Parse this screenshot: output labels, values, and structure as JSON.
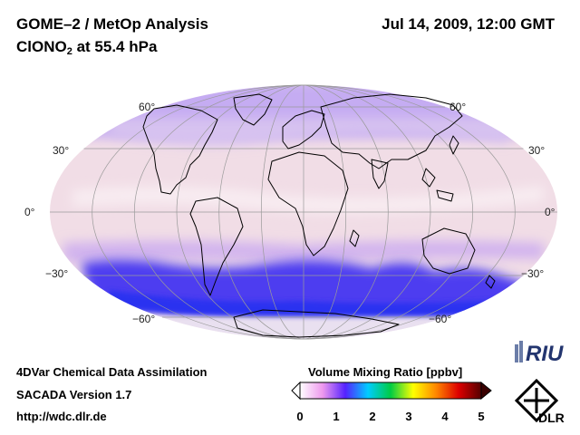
{
  "title_line1": "GOME–2 / MetOp Analysis",
  "title_line2_prefix": "ClONO",
  "title_line2_sub": "2",
  "title_line2_suffix": " at 55.4 hPa",
  "datetime": "Jul 14, 2009, 12:00 GMT",
  "projection": "Mollweide",
  "latitude_labels": {
    "n60": "60°",
    "n30": "30°",
    "eq": "0°",
    "s30": "−30°",
    "s60": "−60°"
  },
  "footer": {
    "line1": "4DVar Chemical Data Assimilation",
    "line2": "SACADA Version 1.7",
    "line3": "http://wdc.dlr.de"
  },
  "colorbar": {
    "title": "Volume Mixing Ratio [ppbv]",
    "min": 0,
    "max": 5,
    "ticks": [
      "0",
      "1",
      "2",
      "3",
      "4",
      "5"
    ],
    "colors": [
      "#ffffff",
      "#ee99ee",
      "#5522ff",
      "#00ccff",
      "#00cc44",
      "#ffff00",
      "#ff8800",
      "#dd0000",
      "#550000"
    ]
  },
  "logos": {
    "riu": "RIU",
    "dlr": "DLR"
  },
  "colors": {
    "background_field": "#f0dde8",
    "high_lat_band": "#c2a8f2",
    "southern_band": "#3f3ff0",
    "coastline": "#000000",
    "grid": "#9a9a9a"
  }
}
